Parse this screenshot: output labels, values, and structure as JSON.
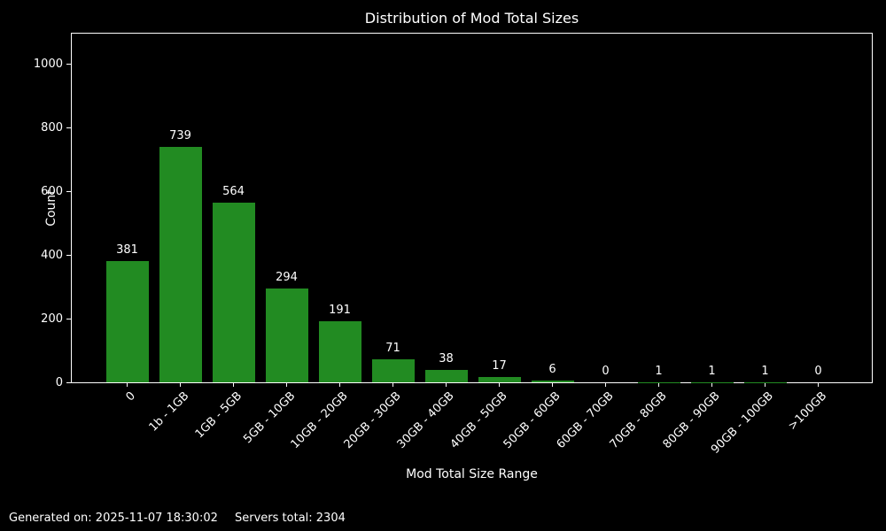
{
  "figure": {
    "footer": {
      "generated_on": "Generated on: 2025-11-07 18:30:02",
      "servers_total": "Servers total: 2304"
    }
  },
  "chart_data": {
    "type": "bar",
    "title": "Distribution of Mod Total Sizes",
    "xlabel": "Mod Total Size Range",
    "ylabel": "Count",
    "categories": [
      "0",
      "1b - 1GB",
      "1GB - 5GB",
      "5GB - 10GB",
      "10GB - 20GB",
      "20GB - 30GB",
      "30GB - 40GB",
      "40GB - 50GB",
      "50GB - 60GB",
      "60GB - 70GB",
      "70GB - 80GB",
      "80GB - 90GB",
      "90GB - 100GB",
      ">100GB"
    ],
    "values": [
      381,
      739,
      564,
      294,
      191,
      71,
      38,
      17,
      6,
      0,
      1,
      1,
      1,
      0
    ],
    "bar_value_labels": [
      381,
      739,
      564,
      294,
      191,
      71,
      38,
      17,
      6,
      0,
      1,
      1,
      1,
      0
    ],
    "ylim": [
      0,
      1100
    ],
    "yticks": [
      0,
      200,
      400,
      600,
      800,
      1000
    ],
    "grid": false,
    "legend": null,
    "bar_color": "#228B22",
    "background_color": "#000000",
    "text_color": "#ffffff",
    "spine_color": "#ffffff"
  }
}
